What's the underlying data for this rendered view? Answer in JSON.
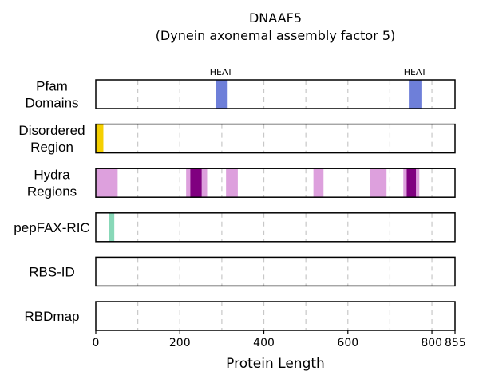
{
  "chart_data": {
    "type": "bar",
    "title": "DNAAF5",
    "subtitle": "(Dynein axonemal assembly factor 5)",
    "xlabel": "Protein Length",
    "xlim": [
      0,
      855
    ],
    "xticks": [
      0,
      200,
      400,
      600,
      800,
      855
    ],
    "grid_x": [
      100,
      200,
      300,
      400,
      500,
      600,
      700,
      800
    ],
    "grid": true,
    "tracks": [
      {
        "label_lines": [
          "Pfam",
          "Domains"
        ],
        "segments": [
          {
            "start": 285,
            "end": 312,
            "color": "#6e7fd9",
            "label": "HEAT"
          },
          {
            "start": 745,
            "end": 775,
            "color": "#6e7fd9",
            "label": "HEAT"
          }
        ]
      },
      {
        "label_lines": [
          "Disordered",
          "Region"
        ],
        "segments": [
          {
            "start": 0,
            "end": 18,
            "color": "#f5d000"
          }
        ]
      },
      {
        "label_lines": [
          "Hydra",
          "Regions"
        ],
        "segments": [
          {
            "start": 0,
            "end": 52,
            "color": "#dda0dd"
          },
          {
            "start": 215,
            "end": 265,
            "color": "#dda0dd"
          },
          {
            "start": 310,
            "end": 338,
            "color": "#dda0dd"
          },
          {
            "start": 518,
            "end": 542,
            "color": "#dda0dd"
          },
          {
            "start": 652,
            "end": 692,
            "color": "#dda0dd"
          },
          {
            "start": 732,
            "end": 770,
            "color": "#dda0dd"
          },
          {
            "start": 225,
            "end": 252,
            "color": "#800080"
          },
          {
            "start": 740,
            "end": 762,
            "color": "#800080"
          }
        ]
      },
      {
        "label_lines": [
          "pepFAX-RIC"
        ],
        "segments": [
          {
            "start": 32,
            "end": 44,
            "color": "#88d8b8"
          }
        ]
      },
      {
        "label_lines": [
          "RBS-ID"
        ],
        "segments": []
      },
      {
        "label_lines": [
          "RBDmap"
        ],
        "segments": []
      }
    ]
  }
}
